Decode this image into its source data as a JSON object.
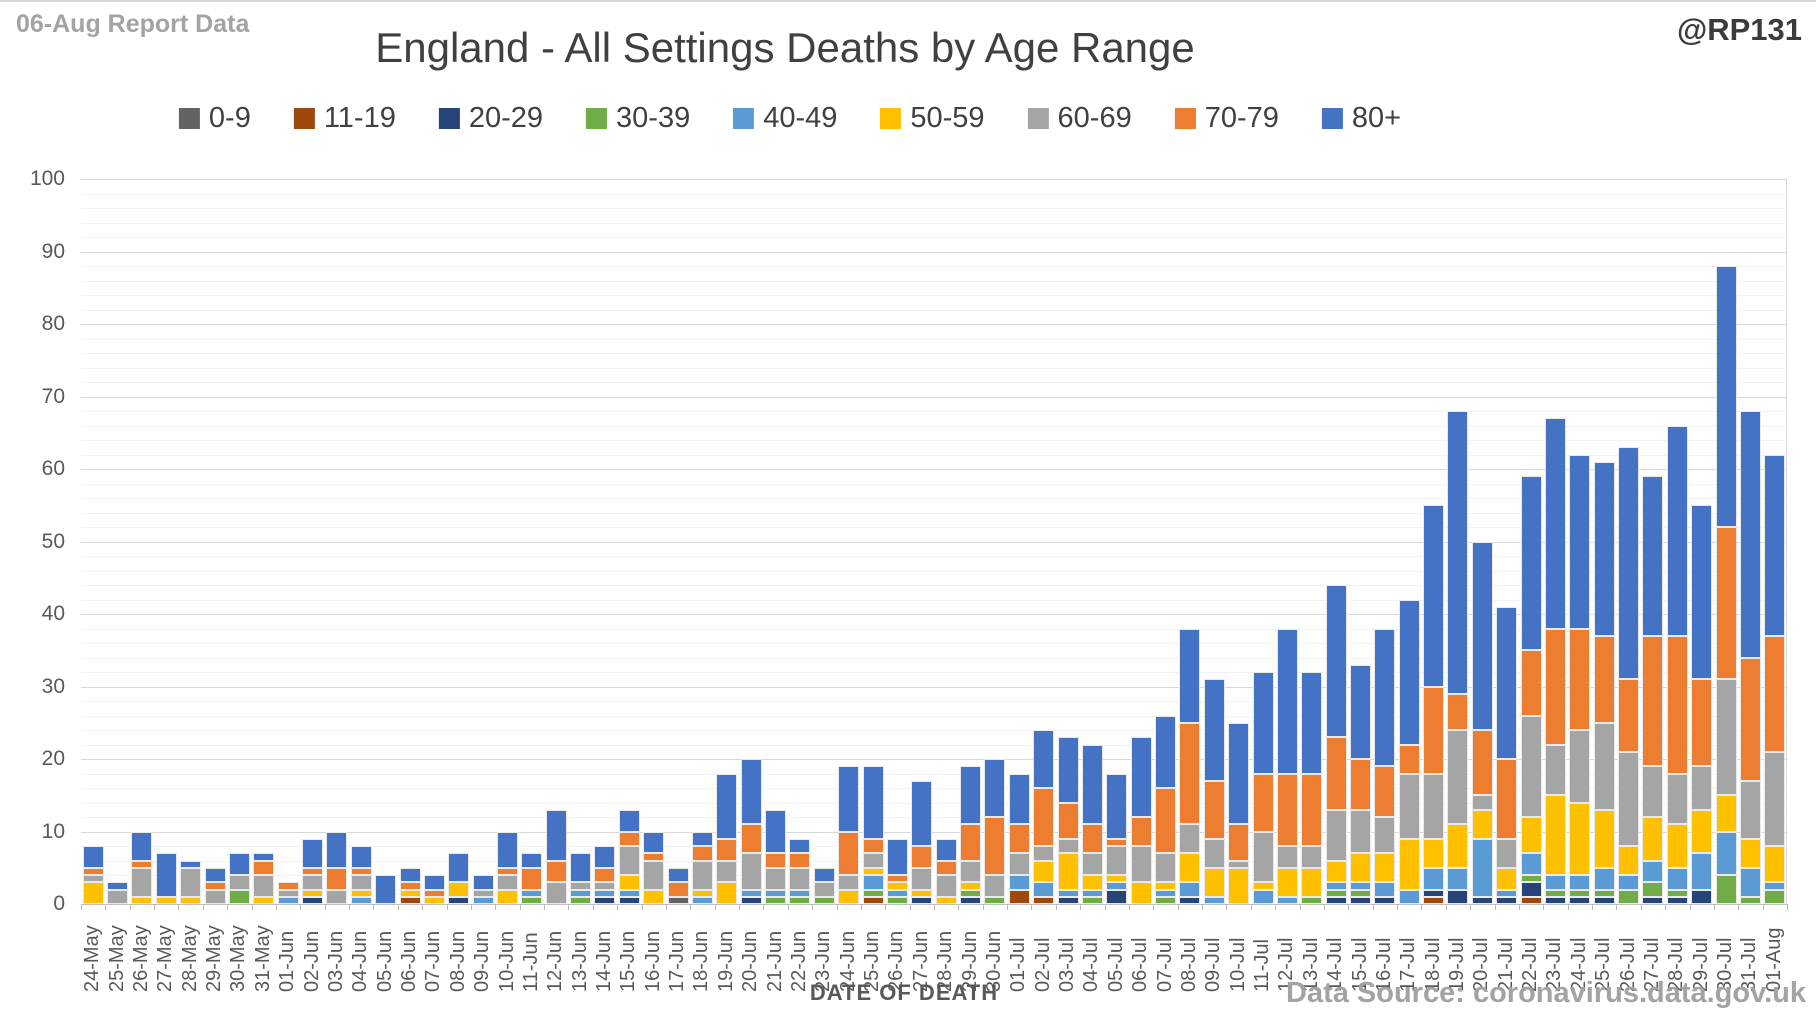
{
  "header": {
    "report_label": "06-Aug Report Data",
    "handle": "@RP131"
  },
  "footer": {
    "xaxis_title": "DATE OF DEATH",
    "source": "Data Source: coronavirus.data.gov.uk"
  },
  "chart_data": {
    "type": "bar",
    "stacked": true,
    "title": "England - All Settings Deaths by Age Range",
    "xlabel": "DATE OF DEATH",
    "ylabel": "",
    "ylim": [
      0,
      100
    ],
    "ytick_interval": 10,
    "minor_gridline_interval": 2,
    "grid": true,
    "legend_position": "top",
    "categories": [
      "24-May",
      "25-May",
      "26-May",
      "27-May",
      "28-May",
      "29-May",
      "30-May",
      "31-May",
      "01-Jun",
      "02-Jun",
      "03-Jun",
      "04-Jun",
      "05-Jun",
      "06-Jun",
      "07-Jun",
      "08-Jun",
      "09-Jun",
      "10-Jun",
      "11-Jun",
      "12-Jun",
      "13-Jun",
      "14-Jun",
      "15-Jun",
      "16-Jun",
      "17-Jun",
      "18-Jun",
      "19-Jun",
      "20-Jun",
      "21-Jun",
      "22-Jun",
      "23-Jun",
      "24-Jun",
      "25-Jun",
      "26-Jun",
      "27-Jun",
      "28-Jun",
      "29-Jun",
      "30-Jun",
      "01-Jul",
      "02-Jul",
      "03-Jul",
      "04-Jul",
      "05-Jul",
      "06-Jul",
      "07-Jul",
      "08-Jul",
      "09-Jul",
      "10-Jul",
      "11-Jul",
      "12-Jul",
      "13-Jul",
      "14-Jul",
      "15-Jul",
      "16-Jul",
      "17-Jul",
      "18-Jul",
      "19-Jul",
      "20-Jul",
      "21-Jul",
      "22-Jul",
      "23-Jul",
      "24-Jul",
      "25-Jul",
      "26-Jul",
      "27-Jul",
      "28-Jul",
      "29-Jul",
      "30-Jul",
      "31-Jul",
      "01-Aug"
    ],
    "series": [
      {
        "name": "0-9",
        "color": "#636363",
        "values": [
          0,
          0,
          0,
          0,
          0,
          0,
          0,
          0,
          0,
          0,
          0,
          0,
          0,
          0,
          0,
          0,
          0,
          0,
          0,
          0,
          0,
          0,
          0,
          0,
          1,
          0,
          0,
          0,
          0,
          0,
          0,
          0,
          0,
          0,
          0,
          0,
          0,
          0,
          0,
          0,
          0,
          0,
          0,
          0,
          0,
          0,
          0,
          0,
          0,
          0,
          0,
          0,
          0,
          0,
          0,
          0,
          0,
          0,
          0,
          0,
          0,
          0,
          0,
          0,
          0,
          0,
          0,
          0,
          0,
          0
        ]
      },
      {
        "name": "11-19",
        "color": "#9e480e",
        "values": [
          0,
          0,
          0,
          0,
          0,
          0,
          0,
          0,
          0,
          0,
          0,
          0,
          0,
          1,
          0,
          0,
          0,
          0,
          0,
          0,
          0,
          0,
          0,
          0,
          0,
          0,
          0,
          0,
          0,
          0,
          0,
          0,
          1,
          0,
          0,
          0,
          0,
          0,
          2,
          1,
          0,
          0,
          0,
          0,
          0,
          0,
          0,
          0,
          0,
          0,
          0,
          0,
          0,
          0,
          0,
          1,
          0,
          0,
          0,
          1,
          0,
          0,
          0,
          0,
          0,
          0,
          0,
          0,
          0,
          0
        ]
      },
      {
        "name": "20-29",
        "color": "#264478",
        "values": [
          0,
          0,
          0,
          0,
          0,
          0,
          0,
          0,
          0,
          1,
          0,
          0,
          0,
          0,
          0,
          1,
          0,
          0,
          0,
          0,
          0,
          1,
          1,
          0,
          0,
          0,
          0,
          1,
          0,
          0,
          0,
          0,
          0,
          0,
          1,
          0,
          1,
          0,
          0,
          0,
          1,
          0,
          2,
          0,
          0,
          1,
          0,
          0,
          0,
          0,
          0,
          1,
          1,
          1,
          0,
          1,
          2,
          1,
          1,
          2,
          1,
          1,
          1,
          0,
          1,
          1,
          2,
          0,
          0,
          0
        ]
      },
      {
        "name": "30-39",
        "color": "#70ad47",
        "values": [
          0,
          0,
          0,
          0,
          0,
          0,
          2,
          0,
          0,
          0,
          0,
          0,
          0,
          0,
          0,
          0,
          0,
          0,
          1,
          0,
          1,
          0,
          0,
          0,
          0,
          0,
          0,
          0,
          1,
          1,
          1,
          0,
          1,
          1,
          0,
          0,
          1,
          1,
          0,
          0,
          0,
          1,
          0,
          0,
          1,
          0,
          0,
          0,
          0,
          0,
          1,
          1,
          1,
          0,
          0,
          0,
          0,
          0,
          0,
          1,
          1,
          1,
          1,
          2,
          2,
          1,
          0,
          4,
          1,
          2
        ]
      },
      {
        "name": "40-49",
        "color": "#5b9bd5",
        "values": [
          0,
          0,
          0,
          0,
          0,
          0,
          0,
          0,
          1,
          0,
          0,
          1,
          0,
          0,
          0,
          0,
          1,
          0,
          1,
          0,
          1,
          1,
          1,
          0,
          0,
          1,
          0,
          1,
          1,
          1,
          0,
          0,
          2,
          1,
          0,
          0,
          0,
          0,
          2,
          2,
          1,
          1,
          1,
          0,
          1,
          2,
          1,
          0,
          2,
          1,
          0,
          1,
          1,
          2,
          2,
          3,
          3,
          8,
          1,
          3,
          2,
          2,
          3,
          2,
          3,
          3,
          5,
          6,
          4,
          1
        ]
      },
      {
        "name": "50-59",
        "color": "#ffc000",
        "values": [
          3,
          0,
          1,
          1,
          1,
          0,
          0,
          1,
          0,
          1,
          0,
          1,
          0,
          1,
          1,
          2,
          0,
          2,
          0,
          0,
          0,
          0,
          2,
          2,
          0,
          1,
          3,
          0,
          0,
          0,
          0,
          2,
          1,
          1,
          1,
          1,
          1,
          0,
          0,
          3,
          5,
          2,
          1,
          3,
          1,
          4,
          4,
          5,
          1,
          4,
          4,
          3,
          4,
          4,
          7,
          4,
          6,
          4,
          3,
          5,
          11,
          10,
          8,
          4,
          6,
          6,
          6,
          5,
          4,
          5
        ]
      },
      {
        "name": "60-69",
        "color": "#a5a5a5",
        "values": [
          1,
          2,
          4,
          0,
          4,
          2,
          2,
          3,
          1,
          2,
          2,
          2,
          0,
          0,
          0,
          0,
          1,
          2,
          0,
          3,
          1,
          1,
          4,
          4,
          0,
          4,
          3,
          5,
          3,
          3,
          2,
          2,
          2,
          0,
          3,
          3,
          3,
          3,
          3,
          2,
          2,
          3,
          4,
          5,
          4,
          4,
          4,
          1,
          7,
          3,
          3,
          7,
          6,
          5,
          9,
          9,
          13,
          2,
          4,
          14,
          7,
          10,
          12,
          13,
          7,
          7,
          6,
          16,
          8,
          13
        ]
      },
      {
        "name": "70-79",
        "color": "#ed7d31",
        "values": [
          1,
          0,
          1,
          0,
          0,
          1,
          0,
          2,
          1,
          1,
          3,
          1,
          0,
          1,
          1,
          0,
          0,
          1,
          3,
          3,
          0,
          2,
          2,
          1,
          2,
          2,
          3,
          4,
          2,
          2,
          0,
          6,
          2,
          1,
          3,
          2,
          5,
          8,
          4,
          8,
          5,
          4,
          1,
          4,
          9,
          14,
          8,
          5,
          8,
          10,
          10,
          10,
          7,
          7,
          4,
          12,
          5,
          9,
          11,
          9,
          16,
          14,
          12,
          10,
          18,
          19,
          12,
          21,
          17,
          16
        ]
      },
      {
        "name": "80+",
        "color": "#4472c4",
        "values": [
          3,
          1,
          4,
          6,
          1,
          2,
          3,
          1,
          0,
          4,
          5,
          3,
          4,
          2,
          2,
          4,
          2,
          5,
          2,
          7,
          4,
          3,
          3,
          3,
          2,
          2,
          9,
          9,
          6,
          2,
          2,
          9,
          10,
          5,
          9,
          3,
          8,
          8,
          7,
          8,
          9,
          11,
          9,
          11,
          10,
          13,
          14,
          14,
          14,
          20,
          14,
          21,
          13,
          19,
          20,
          25,
          39,
          26,
          21,
          24,
          29,
          24,
          24,
          32,
          22,
          29,
          24,
          36,
          34,
          25
        ]
      }
    ]
  }
}
